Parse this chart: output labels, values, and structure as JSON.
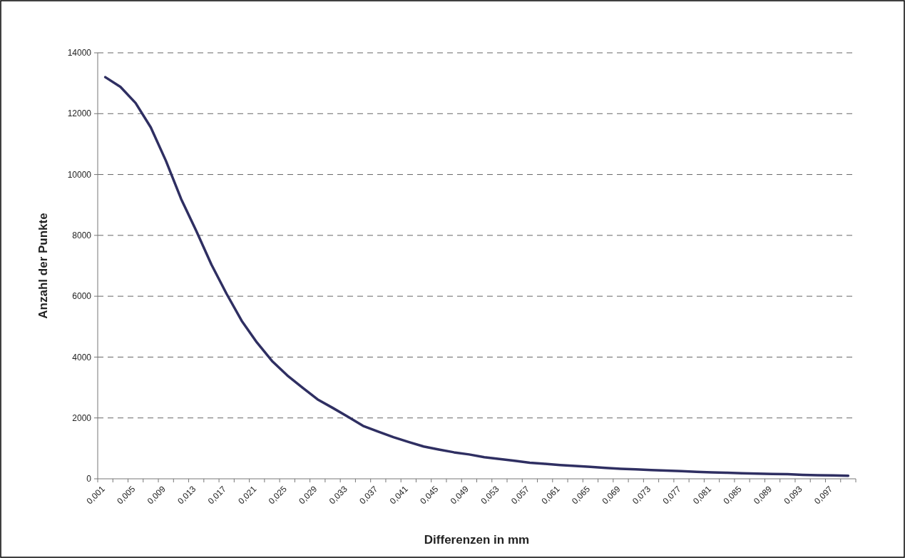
{
  "chart_data": {
    "type": "line",
    "xlabel": "Differenzen in mm",
    "ylabel": "Anzahl der Punkte",
    "categories": [
      "0,001",
      null,
      "0,005",
      null,
      "0,009",
      null,
      "0,013",
      null,
      "0,017",
      null,
      "0,021",
      null,
      "0,025",
      null,
      "0,029",
      null,
      "0,033",
      null,
      "0,037",
      null,
      "0,041",
      null,
      "0,045",
      null,
      "0,049",
      null,
      "0,053",
      null,
      "0,057",
      null,
      "0,061",
      null,
      "0,065",
      null,
      "0,069",
      null,
      "0,073",
      null,
      "0,077",
      null,
      "0,081",
      null,
      "0,085",
      null,
      "0,089",
      null,
      "0,093",
      null,
      "0,097",
      null
    ],
    "series": [
      {
        "color": "#2f2f62",
        "values": [
          13200,
          12880,
          12350,
          11550,
          10450,
          9200,
          8150,
          7040,
          6080,
          5190,
          4480,
          3870,
          3400,
          3000,
          2610,
          2330,
          2040,
          1740,
          1550,
          1370,
          1210,
          1060,
          960,
          870,
          800,
          710,
          650,
          590,
          530,
          490,
          450,
          420,
          390,
          360,
          330,
          310,
          290,
          270,
          250,
          230,
          210,
          200,
          180,
          170,
          160,
          150,
          130,
          120,
          110,
          100
        ]
      }
    ],
    "ylim": [
      0,
      14000
    ],
    "yticks": [
      0,
      2000,
      4000,
      6000,
      8000,
      10000,
      12000,
      14000
    ],
    "grid": "y",
    "marker": "none",
    "line_style": "solid"
  }
}
